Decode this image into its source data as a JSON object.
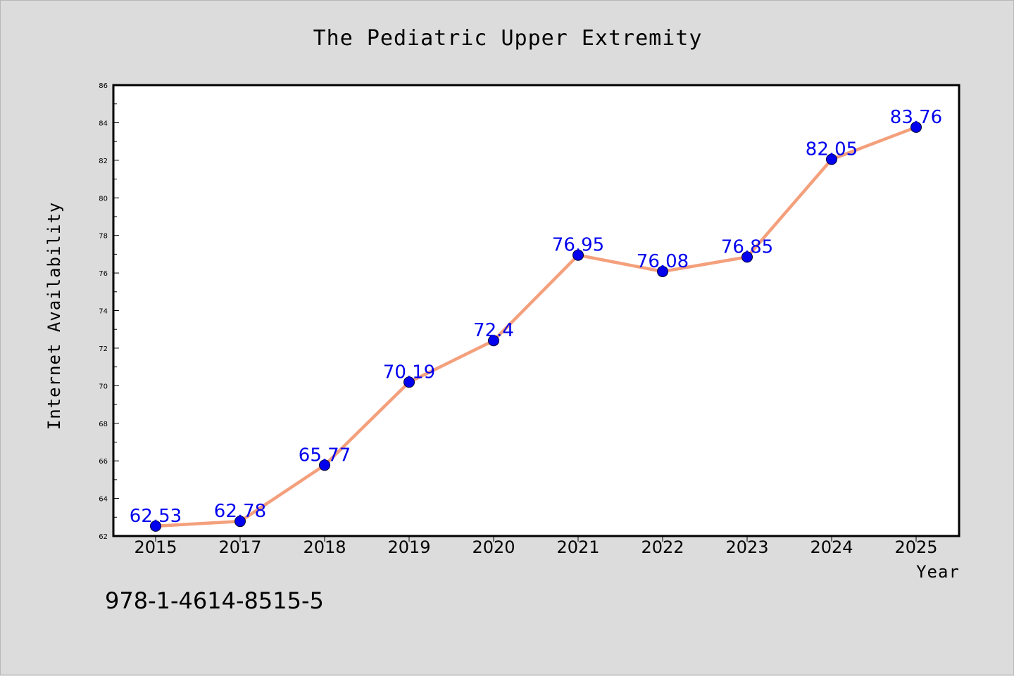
{
  "footer_text": "978-1-4614-8515-5",
  "chart_data": {
    "type": "line",
    "title": "The Pediatric Upper Extremity",
    "xlabel": "Year",
    "ylabel": "Internet Availability",
    "categories": [
      "2015",
      "2017",
      "2018",
      "2019",
      "2020",
      "2021",
      "2022",
      "2023",
      "2024",
      "2025"
    ],
    "values": [
      62.53,
      62.78,
      65.77,
      70.19,
      72.4,
      76.95,
      76.08,
      76.85,
      82.05,
      83.76
    ],
    "data_labels": [
      "62.53",
      "62.78",
      "65.77",
      "70.19",
      "72.4",
      "76.95",
      "76.08",
      "76.85",
      "82.05",
      "83.76"
    ],
    "ylim": [
      62,
      86
    ],
    "yticks": [
      62,
      64,
      66,
      68,
      70,
      72,
      74,
      76,
      78,
      80,
      82,
      84,
      86
    ],
    "grid": false,
    "legend": "none",
    "colors": {
      "line": "#f4a07c",
      "marker": "#0000ee",
      "labels": "#0000ee",
      "background": "#dcdcdc",
      "plot_area": "#ffffff"
    }
  }
}
